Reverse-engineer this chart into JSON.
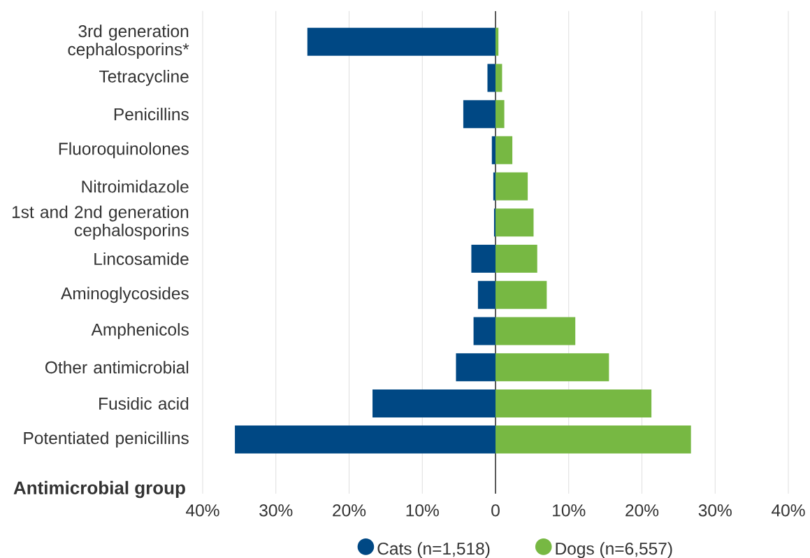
{
  "chart_data": {
    "type": "bar",
    "orientation": "horizontal",
    "stacked": true,
    "categories": [
      "3rd generation cephalosporins*",
      "Tetracycline",
      "Penicillins",
      "Fluoroquinolones",
      "Nitroimidazole",
      "1st and 2nd generation cephalosporins",
      "Lincosamide",
      "Aminoglycosides",
      "Amphenicols",
      "Other antimicrobial",
      "Fusidic acid",
      "Potentiated penicillins"
    ],
    "series": [
      {
        "name": "Cats (n=1,518)",
        "color": "#004884",
        "values": [
          -25.7,
          -1.1,
          -4.4,
          -0.5,
          -0.3,
          -0.2,
          -3.3,
          -2.4,
          -3.0,
          -5.4,
          -16.8,
          -35.6
        ]
      },
      {
        "name": "Dogs (n=6,557)",
        "color": "#77b843",
        "values": [
          0.4,
          0.9,
          1.2,
          2.3,
          4.4,
          5.2,
          5.7,
          7.0,
          10.9,
          15.5,
          21.3,
          26.7
        ]
      }
    ],
    "ylabel": "Antimicrobial group",
    "xlim": [
      -40,
      40
    ],
    "xticks": [
      {
        "value": -40,
        "label": "40%"
      },
      {
        "value": -30,
        "label": "30%"
      },
      {
        "value": -20,
        "label": "20%"
      },
      {
        "value": -10,
        "label": "10%"
      },
      0,
      {
        "value": 10,
        "label": "10%"
      },
      {
        "value": 20,
        "label": "20%"
      },
      {
        "value": 30,
        "label": "30%"
      },
      {
        "value": 40,
        "label": "40%"
      }
    ],
    "grid": "x",
    "legend": "bottom",
    "ref_lines": [
      {
        "axis": "x",
        "value": 0,
        "color": "#404040"
      }
    ]
  }
}
